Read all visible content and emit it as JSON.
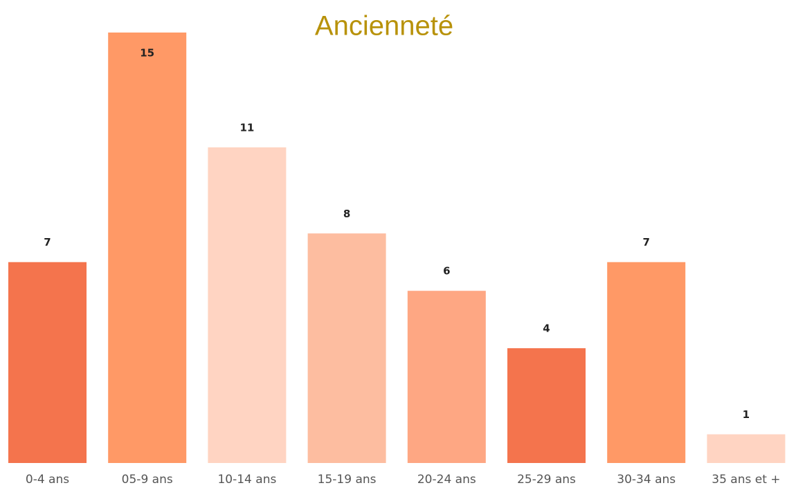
{
  "chart_data": {
    "type": "bar",
    "title": "Ancienneté",
    "categories": [
      "0-4 ans",
      "05-9 ans",
      "10-14 ans",
      "15-19 ans",
      "20-24 ans",
      "25-29 ans",
      "30-34 ans",
      "35 ans et +"
    ],
    "values": [
      7,
      15,
      11,
      8,
      6,
      4,
      7,
      1
    ],
    "colors": [
      "#f4744d",
      "#ff9966",
      "#ffd4c2",
      "#fdbda0",
      "#fea783",
      "#f4744d",
      "#ff9966",
      "#ffd4c2"
    ]
  }
}
